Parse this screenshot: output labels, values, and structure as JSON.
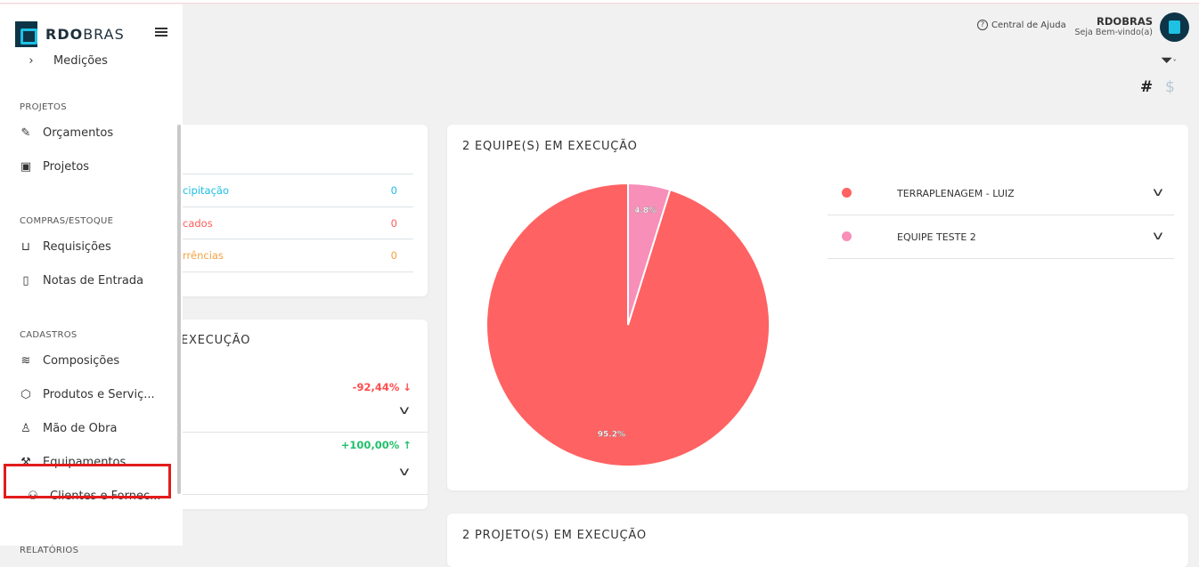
{
  "sidebar": {
    "brand_bold": "RDO",
    "brand_light": "BRAS",
    "medicoes": "Medições",
    "sections": [
      {
        "label": "PROJETOS",
        "items": [
          {
            "label": "Orçamentos",
            "icon": "pencil-icon"
          },
          {
            "label": "Projetos",
            "icon": "kanban-icon"
          }
        ]
      },
      {
        "label": "COMPRAS/ESTOQUE",
        "items": [
          {
            "label": "Requisições",
            "icon": "bag-icon"
          },
          {
            "label": "Notas de Entrada",
            "icon": "file-icon"
          }
        ]
      },
      {
        "label": "CADASTROS",
        "items": [
          {
            "label": "Composições",
            "icon": "layers-icon"
          },
          {
            "label": "Produtos e Serviç...",
            "icon": "box-icon"
          },
          {
            "label": "Mão de Obra",
            "icon": "user-icon"
          },
          {
            "label": "Equipamentos",
            "icon": "wrench-icon"
          },
          {
            "label": "Clientes e Fornec...",
            "icon": "users-icon"
          }
        ]
      },
      {
        "label": "RELATÓRIOS",
        "items": []
      }
    ]
  },
  "header": {
    "help": "Central de Ajuda",
    "user_name": "RDOBRAS",
    "welcome": "Seja Bem-vindo(a)",
    "hash": "#",
    "dollar": "$"
  },
  "card_occurrences": {
    "rows": [
      {
        "label": "cipitação",
        "value": "0",
        "color": "#1ec0e4"
      },
      {
        "label": "cados",
        "value": "0",
        "color": "#ff5c5c"
      },
      {
        "label": "rrências",
        "value": "0",
        "color": "#f5a142"
      }
    ]
  },
  "card_projects": {
    "title": "EXECUÇÃO",
    "rows": [
      {
        "value": "-92,44%",
        "arrow": "↓",
        "color": "#ff4d4d"
      },
      {
        "value": "+100,00%",
        "arrow": "↑",
        "color": "#1fbf6a"
      }
    ]
  },
  "teams_card": {
    "title": "2 EQUIPE(S) EM EXECUÇÃO"
  },
  "projects_card": {
    "title": "2 PROJETO(S) EM EXECUÇÃO"
  },
  "chart_data": {
    "type": "pie",
    "categories": [
      "TERRAPLENAGEM - LUIZ",
      "EQUIPE TESTE 2"
    ],
    "values": [
      95.2,
      4.8
    ],
    "labels": [
      "95.2%",
      "4.8%"
    ],
    "colors": [
      "#ff6262",
      "#f78fb8"
    ],
    "legend": "right"
  }
}
